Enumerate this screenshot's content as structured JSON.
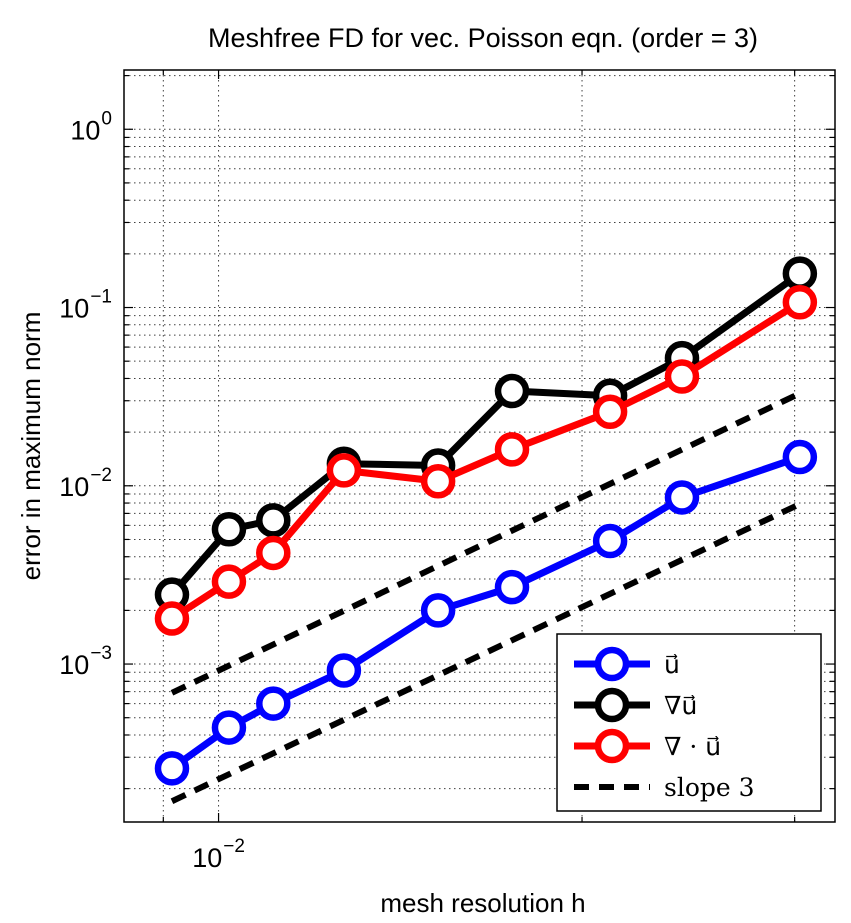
{
  "chart_data": {
    "type": "line",
    "title": "Meshfree FD for vec. Poisson eqn. (order = 3)",
    "xlabel": "mesh resolution h",
    "ylabel": "error in maximum norm",
    "xscale": "log",
    "yscale": "log",
    "xlim": [
      0.00835,
      0.0324
    ],
    "ylim": [
      0.00013,
      2.15
    ],
    "x_ticks": [
      {
        "value": 0.01,
        "base": "10",
        "exp": "−2"
      }
    ],
    "y_ticks": [
      {
        "value": 0.001,
        "base": "10",
        "exp": "−3"
      },
      {
        "value": 0.01,
        "base": "10",
        "exp": "−2"
      },
      {
        "value": 0.1,
        "base": "10",
        "exp": "−1"
      },
      {
        "value": 1,
        "base": "10",
        "exp": "0"
      }
    ],
    "grid": true,
    "legend_position": "bottom-right",
    "x": [
      0.00915,
      0.0102,
      0.0111,
      0.0127,
      0.0152,
      0.0175,
      0.0211,
      0.0242,
      0.0303
    ],
    "series": [
      {
        "name": "u⃗",
        "color": "#0000ff",
        "marker": "circle",
        "line": "solid",
        "values": [
          0.00026,
          0.00044,
          0.0006,
          0.00092,
          0.002,
          0.0027,
          0.0049,
          0.0086,
          0.0145
        ]
      },
      {
        "name": "∇u⃗",
        "color": "#000000",
        "marker": "circle",
        "line": "solid",
        "values": [
          0.00245,
          0.0057,
          0.0064,
          0.0133,
          0.013,
          0.034,
          0.032,
          0.052,
          0.155
        ]
      },
      {
        "name": "∇ · u⃗",
        "color": "#ff0000",
        "marker": "circle",
        "line": "solid",
        "values": [
          0.0018,
          0.0029,
          0.0042,
          0.0122,
          0.0106,
          0.016,
          0.026,
          0.041,
          0.107
        ]
      },
      {
        "name": "slope 3",
        "color": "#000000",
        "marker": "none",
        "line": "dashed",
        "x": [
          0.00915,
          0.0303
        ],
        "values": [
          0.00069,
          0.033
        ]
      },
      {
        "name": "slope 3 (lower)",
        "color": "#000000",
        "marker": "none",
        "line": "dashed",
        "in_legend": false,
        "x": [
          0.00915,
          0.0303
        ],
        "values": [
          0.00017,
          0.0079
        ]
      }
    ]
  }
}
